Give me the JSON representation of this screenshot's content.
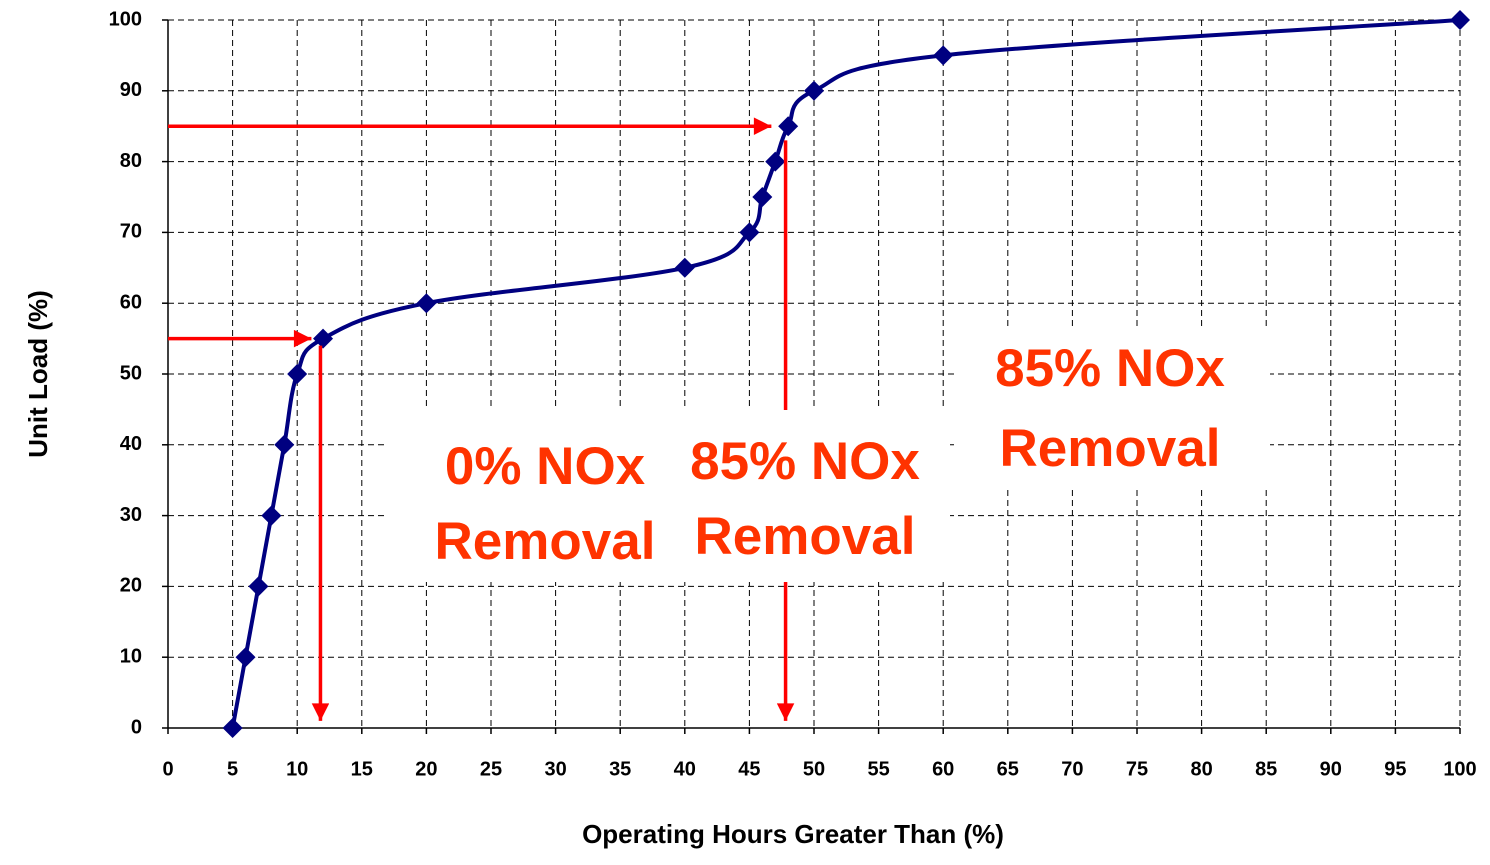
{
  "chart_data": {
    "type": "line",
    "x_label": "Operating Hours Greater Than (%)",
    "y_label": "Unit Load  (%)",
    "x": [
      5,
      6,
      7,
      8,
      9,
      10,
      12,
      20,
      40,
      45,
      46,
      47,
      48,
      50,
      60,
      100
    ],
    "series": [
      {
        "name": "Unit Load",
        "color": "#000080",
        "values": [
          0,
          10,
          20,
          30,
          40,
          50,
          55,
          60,
          65,
          70,
          75,
          80,
          85,
          90,
          95,
          100
        ]
      }
    ],
    "xlim": [
      0,
      100
    ],
    "xticks": [
      0,
      5,
      10,
      15,
      20,
      25,
      30,
      35,
      40,
      45,
      50,
      55,
      60,
      65,
      70,
      75,
      80,
      85,
      90,
      95,
      100
    ],
    "ylim": [
      0,
      100
    ],
    "yticks": [
      0,
      10,
      20,
      30,
      40,
      50,
      60,
      70,
      80,
      90,
      100
    ],
    "grid": true,
    "arrow_color": "#ff0000",
    "arrows": [
      {
        "x": [
          0,
          46.7
        ],
        "y": [
          85,
          85
        ]
      },
      {
        "x": [
          0,
          11.1
        ],
        "y": [
          55,
          55
        ]
      },
      {
        "x": [
          11.8,
          11.8
        ],
        "y": [
          54,
          1
        ]
      },
      {
        "x": [
          47.8,
          47.8
        ],
        "y": [
          83,
          1
        ]
      }
    ],
    "annotation_color": "#ff3300",
    "annotations": [
      {
        "lines": [
          "0% NOx",
          "Removal"
        ]
      },
      {
        "lines": [
          "85% NOx",
          "Removal"
        ]
      },
      {
        "lines": [
          "85% NOx",
          "Removal"
        ]
      }
    ]
  }
}
